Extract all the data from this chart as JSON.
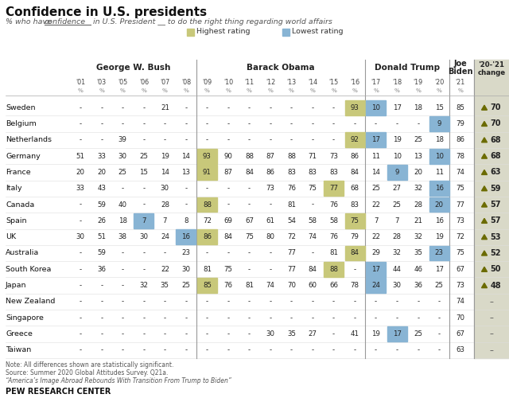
{
  "title": "Confidence in U.S. presidents",
  "subtitle_part1": "% who have ",
  "subtitle_underline": "confidence",
  "subtitle_part2": " in U.S. President __ to do the right thing regarding world affairs",
  "legend_highest": "Highest rating",
  "legend_lowest": "Lowest rating",
  "color_highest": "#c8c87a",
  "color_lowest": "#88b4d4",
  "color_last_col_bg": "#d9d9c8",
  "countries": [
    "Sweden",
    "Belgium",
    "Netherlands",
    "Germany",
    "France",
    "Italy",
    "Canada",
    "Spain",
    "UK",
    "Australia",
    "South Korea",
    "Japan",
    "New Zealand",
    "Singapore",
    "Greece",
    "Taiwan"
  ],
  "years_all": [
    "'01",
    "'03",
    "'05",
    "'06",
    "'07",
    "'08",
    "'09",
    "'10",
    "'11",
    "'12",
    "'13",
    "'14",
    "'15",
    "'16",
    "'17",
    "'18",
    "'19",
    "'20",
    "'21"
  ],
  "data": {
    "Sweden": {
      "bush": [
        null,
        null,
        null,
        null,
        21,
        null
      ],
      "obama": [
        null,
        null,
        null,
        null,
        null,
        null,
        null,
        93
      ],
      "trump": [
        10,
        17,
        18,
        15
      ],
      "biden": 85,
      "change": 70,
      "highest_mark": {
        "pres": "obama",
        "yr": 7
      },
      "lowest_mark": {
        "pres": "trump",
        "yr": 0
      }
    },
    "Belgium": {
      "bush": [
        null,
        null,
        null,
        null,
        null,
        null
      ],
      "obama": [
        null,
        null,
        null,
        null,
        null,
        null,
        null,
        null
      ],
      "trump": [
        null,
        null,
        null,
        9
      ],
      "biden": 79,
      "change": 70,
      "highest_mark": null,
      "lowest_mark": {
        "pres": "trump",
        "yr": 3
      }
    },
    "Netherlands": {
      "bush": [
        null,
        null,
        39,
        null,
        null,
        null
      ],
      "obama": [
        null,
        null,
        null,
        null,
        null,
        null,
        null,
        92
      ],
      "trump": [
        17,
        19,
        25,
        18
      ],
      "biden": 86,
      "change": 68,
      "highest_mark": {
        "pres": "obama",
        "yr": 7
      },
      "lowest_mark": {
        "pres": "trump",
        "yr": 0
      }
    },
    "Germany": {
      "bush": [
        51,
        33,
        30,
        25,
        19,
        14
      ],
      "obama": [
        93,
        90,
        88,
        87,
        88,
        71,
        73,
        86
      ],
      "trump": [
        11,
        10,
        13,
        10
      ],
      "biden": 78,
      "change": 68,
      "highest_mark": {
        "pres": "obama",
        "yr": 0
      },
      "lowest_mark": {
        "pres": "trump",
        "yr": 3
      }
    },
    "France": {
      "bush": [
        20,
        20,
        25,
        15,
        14,
        13
      ],
      "obama": [
        91,
        87,
        84,
        86,
        83,
        83,
        83,
        84
      ],
      "trump": [
        14,
        9,
        20,
        11
      ],
      "biden": 74,
      "change": 63,
      "highest_mark": {
        "pres": "obama",
        "yr": 0
      },
      "lowest_mark": {
        "pres": "trump",
        "yr": 1
      }
    },
    "Italy": {
      "bush": [
        33,
        43,
        null,
        null,
        30,
        null
      ],
      "obama": [
        null,
        null,
        null,
        73,
        76,
        75,
        77,
        68
      ],
      "trump": [
        25,
        27,
        32,
        16
      ],
      "biden": 75,
      "change": 59,
      "highest_mark": {
        "pres": "obama",
        "yr": 6
      },
      "lowest_mark": {
        "pres": "trump",
        "yr": 3
      }
    },
    "Canada": {
      "bush": [
        null,
        59,
        40,
        null,
        28,
        null
      ],
      "obama": [
        88,
        null,
        null,
        null,
        81,
        null,
        76,
        83
      ],
      "trump": [
        22,
        25,
        28,
        20
      ],
      "biden": 77,
      "change": 57,
      "highest_mark": {
        "pres": "obama",
        "yr": 0
      },
      "lowest_mark": {
        "pres": "trump",
        "yr": 3
      }
    },
    "Spain": {
      "bush": [
        null,
        26,
        18,
        7,
        7,
        8
      ],
      "obama": [
        72,
        69,
        67,
        61,
        54,
        58,
        58,
        75
      ],
      "trump": [
        7,
        7,
        21,
        16
      ],
      "biden": 73,
      "change": 57,
      "highest_mark": {
        "pres": "obama",
        "yr": 7
      },
      "lowest_mark": {
        "pres": "bush",
        "yr": 3
      }
    },
    "UK": {
      "bush": [
        30,
        51,
        38,
        30,
        24,
        16
      ],
      "obama": [
        86,
        84,
        75,
        80,
        72,
        74,
        76,
        79
      ],
      "trump": [
        22,
        28,
        32,
        19
      ],
      "biden": 72,
      "change": 53,
      "highest_mark": {
        "pres": "obama",
        "yr": 0
      },
      "lowest_mark": {
        "pres": "bush",
        "yr": 5
      }
    },
    "Australia": {
      "bush": [
        null,
        59,
        null,
        null,
        null,
        23
      ],
      "obama": [
        null,
        null,
        null,
        null,
        77,
        null,
        81,
        84
      ],
      "trump": [
        29,
        32,
        35,
        23
      ],
      "biden": 75,
      "change": 52,
      "highest_mark": {
        "pres": "obama",
        "yr": 7
      },
      "lowest_mark": {
        "pres": "trump",
        "yr": 3
      }
    },
    "South Korea": {
      "bush": [
        null,
        36,
        null,
        null,
        22,
        30
      ],
      "obama": [
        81,
        75,
        null,
        null,
        77,
        84,
        88,
        null
      ],
      "trump": [
        17,
        44,
        46,
        17
      ],
      "biden": 67,
      "change": 50,
      "highest_mark": {
        "pres": "obama",
        "yr": 6
      },
      "lowest_mark": {
        "pres": "trump",
        "yr": 0
      }
    },
    "Japan": {
      "bush": [
        null,
        null,
        null,
        32,
        35,
        25
      ],
      "obama": [
        85,
        76,
        81,
        74,
        70,
        60,
        66,
        78
      ],
      "trump": [
        24,
        30,
        36,
        25
      ],
      "biden": 73,
      "change": 48,
      "highest_mark": {
        "pres": "obama",
        "yr": 0
      },
      "lowest_mark": {
        "pres": "trump",
        "yr": 0
      }
    },
    "New Zealand": {
      "bush": [
        null,
        null,
        null,
        null,
        null,
        null
      ],
      "obama": [
        null,
        null,
        null,
        null,
        null,
        null,
        null,
        null
      ],
      "trump": [
        null,
        null,
        null,
        null
      ],
      "biden": 74,
      "change": null,
      "highest_mark": null,
      "lowest_mark": null
    },
    "Singapore": {
      "bush": [
        null,
        null,
        null,
        null,
        null,
        null
      ],
      "obama": [
        null,
        null,
        null,
        null,
        null,
        null,
        null,
        null
      ],
      "trump": [
        null,
        null,
        null,
        null
      ],
      "biden": 70,
      "change": null,
      "highest_mark": null,
      "lowest_mark": null
    },
    "Greece": {
      "bush": [
        null,
        null,
        null,
        null,
        null,
        null
      ],
      "obama": [
        null,
        null,
        null,
        30,
        35,
        27,
        null,
        41
      ],
      "trump": [
        19,
        17,
        25,
        null
      ],
      "biden": 67,
      "change": null,
      "highest_mark": null,
      "lowest_mark": {
        "pres": "trump",
        "yr": 1
      }
    },
    "Taiwan": {
      "bush": [
        null,
        null,
        null,
        null,
        null,
        null
      ],
      "obama": [
        null,
        null,
        null,
        null,
        null,
        null,
        null,
        null
      ],
      "trump": [
        null,
        null,
        null,
        null
      ],
      "biden": 63,
      "change": null,
      "highest_mark": null,
      "lowest_mark": null
    }
  },
  "background_color": "#ffffff",
  "arrow_color": "#6b6b00",
  "note_text": "Note: All differences shown are statistically significant.",
  "source_text": "Source: Summer 2020 Global Attitudes Survey. Q21a.",
  "quote_text": "“America’s Image Abroad Rebounds With Transition From Trump to Biden”",
  "pew_text": "PEW RESEARCH CENTER"
}
